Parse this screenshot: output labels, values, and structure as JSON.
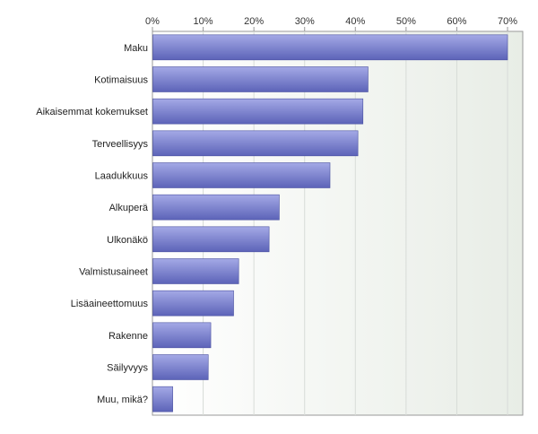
{
  "chart_data": {
    "type": "bar",
    "orientation": "horizontal",
    "title": "",
    "xlabel": "",
    "ylabel": "",
    "xlim": [
      0,
      73
    ],
    "x_ticks": [
      "0%",
      "10%",
      "20%",
      "30%",
      "40%",
      "50%",
      "60%",
      "70%"
    ],
    "x_tick_values": [
      0,
      10,
      20,
      30,
      40,
      50,
      60,
      70
    ],
    "x_axis_position": "top",
    "grid": true,
    "categories": [
      "Maku",
      "Kotimaisuus",
      "Aikaisemmat kokemukset",
      "Terveellisyys",
      "Laadukkuus",
      "Alkuperä",
      "Ulkonäkö",
      "Valmistusaineet",
      "Lisäaineettomuus",
      "Rakenne",
      "Säilyvyys",
      "Muu, mikä?"
    ],
    "values": [
      70,
      42.5,
      41.5,
      40.5,
      35,
      25,
      23,
      17,
      16,
      11.5,
      11,
      4
    ],
    "colors": {
      "bar_fill_top": "#a4a9e6",
      "bar_fill_bottom": "#5c63b8",
      "bar_stroke": "#4b52a0",
      "plot_bg_left": "#ffffff",
      "plot_bg_right": "#e8ede6",
      "grid": "#d8dcd8",
      "axis": "#999999"
    }
  }
}
